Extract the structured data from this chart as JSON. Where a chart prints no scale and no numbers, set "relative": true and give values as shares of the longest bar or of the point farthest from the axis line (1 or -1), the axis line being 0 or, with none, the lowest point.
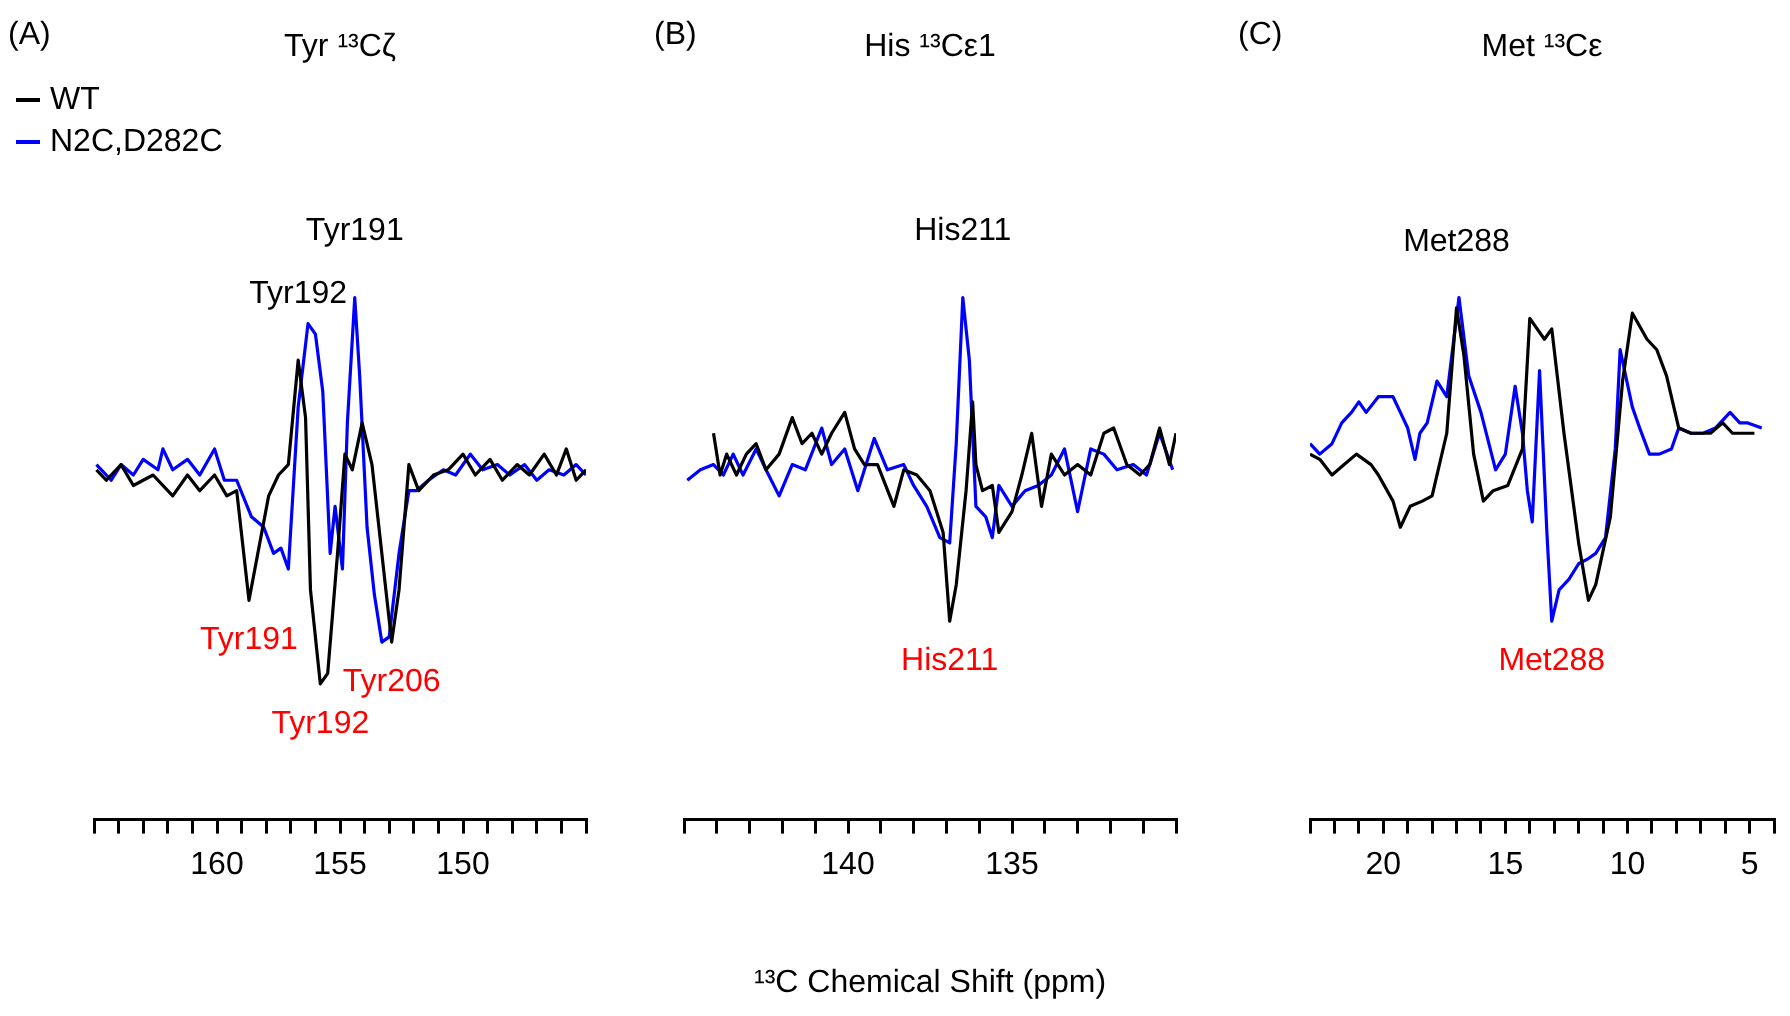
{
  "chart_data": [
    {
      "type": "line",
      "title": "Tyr ¹³Cζ",
      "relative": true,
      "marker": "none",
      "legend": "top left",
      "tick_labels": "x",
      "xlim": [
        165,
        145
      ],
      "xticks": [
        {
          "value": 165,
          "label": null
        },
        {
          "value": 164,
          "label": null
        },
        {
          "value": 163,
          "label": null
        },
        {
          "value": 162,
          "label": null
        },
        {
          "value": 161,
          "label": null
        },
        160,
        {
          "value": 159,
          "label": null
        },
        {
          "value": 158,
          "label": null
        },
        {
          "value": 157,
          "label": null
        },
        {
          "value": 156,
          "label": null
        },
        155,
        {
          "value": 154,
          "label": null
        },
        {
          "value": 153,
          "label": null
        },
        {
          "value": 152,
          "label": null
        },
        {
          "value": 151,
          "label": null
        },
        150,
        {
          "value": 149,
          "label": null
        },
        {
          "value": 148,
          "label": null
        },
        {
          "value": 147,
          "label": null
        },
        {
          "value": 146,
          "label": null
        },
        {
          "value": 145,
          "label": null
        }
      ],
      "annotations": [
        "(A)",
        {
          "text": "Tyr192",
          "x": 156.7,
          "y": 0.88
        },
        {
          "text": "Tyr191",
          "x": 154.4,
          "y": 1
        },
        {
          "text": "Tyr191",
          "x": 158.7,
          "y": 0.42
        },
        {
          "text": "Tyr192",
          "x": 155.8,
          "y": 0.26
        },
        {
          "text": "Tyr206",
          "x": 152.9,
          "y": 0.34
        }
      ],
      "series": [
        {
          "name": "WT",
          "color": "#000000",
          "x": [
            164.9,
            164.5,
            163.9,
            163.4,
            162.6,
            161.8,
            161.2,
            160.7,
            160.1,
            159.6,
            159.2,
            158.7,
            158.3,
            157.9,
            157.5,
            157.1,
            156.7,
            156.4,
            156.2,
            155.8,
            155.5,
            155.1,
            154.8,
            154.5,
            154.1,
            153.7,
            153.3,
            152.9,
            152.6,
            152.2,
            151.8,
            151.2,
            150.6,
            150.0,
            149.5,
            148.9,
            148.4,
            147.8,
            147.3,
            146.7,
            146.2,
            145.8,
            145.4,
            145.0
          ],
          "values": [
            0.67,
            0.65,
            0.68,
            0.64,
            0.66,
            0.62,
            0.66,
            0.63,
            0.66,
            0.62,
            0.63,
            0.42,
            0.52,
            0.62,
            0.66,
            0.68,
            0.88,
            0.77,
            0.44,
            0.26,
            0.28,
            0.51,
            0.7,
            0.67,
            0.76,
            0.68,
            0.51,
            0.34,
            0.44,
            0.68,
            0.63,
            0.66,
            0.67,
            0.7,
            0.66,
            0.69,
            0.65,
            0.68,
            0.66,
            0.7,
            0.66,
            0.71,
            0.65,
            0.67
          ]
        },
        {
          "name": "N2C,D282C",
          "color": "#0000ff",
          "x": [
            164.9,
            164.3,
            163.9,
            163.4,
            163.0,
            162.4,
            162.2,
            161.8,
            161.2,
            160.7,
            160.1,
            159.7,
            159.2,
            158.6,
            158.1,
            157.7,
            157.4,
            157.1,
            156.7,
            156.3,
            156.0,
            155.7,
            155.4,
            155.2,
            154.9,
            154.7,
            154.4,
            154.2,
            153.9,
            153.6,
            153.3,
            153.0,
            152.6,
            152.2,
            151.9,
            151.4,
            150.8,
            150.3,
            149.7,
            149.2,
            148.6,
            148.1,
            147.5,
            147.0,
            146.5,
            145.9,
            145.4,
            145.0
          ],
          "values": [
            0.68,
            0.65,
            0.68,
            0.66,
            0.69,
            0.67,
            0.71,
            0.67,
            0.69,
            0.66,
            0.71,
            0.65,
            0.65,
            0.58,
            0.56,
            0.51,
            0.52,
            0.48,
            0.79,
            0.95,
            0.93,
            0.82,
            0.51,
            0.6,
            0.48,
            0.76,
            1,
            0.85,
            0.56,
            0.43,
            0.34,
            0.35,
            0.51,
            0.63,
            0.63,
            0.65,
            0.67,
            0.66,
            0.7,
            0.67,
            0.68,
            0.66,
            0.68,
            0.65,
            0.67,
            0.66,
            0.68,
            0.66
          ]
        }
      ]
    },
    {
      "type": "line",
      "title": "His ¹³Cε1",
      "relative": true,
      "marker": "none",
      "tick_labels": "x",
      "xlabel": "¹³C Chemical Shift (ppm)",
      "xlim": [
        145,
        130
      ],
      "xticks": [
        {
          "value": 145,
          "label": null
        },
        {
          "value": 144,
          "label": null
        },
        {
          "value": 143,
          "label": null
        },
        {
          "value": 142,
          "label": null
        },
        {
          "value": 141,
          "label": null
        },
        140,
        {
          "value": 139,
          "label": null
        },
        {
          "value": 138,
          "label": null
        },
        {
          "value": 137,
          "label": null
        },
        {
          "value": 136,
          "label": null
        },
        135,
        {
          "value": 134,
          "label": null
        },
        {
          "value": 133,
          "label": null
        },
        {
          "value": 132,
          "label": null
        },
        {
          "value": 131,
          "label": null
        },
        {
          "value": 130,
          "label": null
        }
      ],
      "annotations": [
        "(B)",
        {
          "text": "His211",
          "x": 136.5,
          "y": 1
        },
        {
          "text": "His211",
          "x": 136.9,
          "y": 0.38
        }
      ],
      "series": [
        {
          "color": "#000000",
          "x": [
            144.1,
            143.9,
            143.7,
            143.4,
            143.1,
            142.8,
            142.5,
            142.1,
            141.7,
            141.4,
            141.1,
            140.8,
            140.5,
            140.1,
            139.8,
            139.5,
            139.1,
            138.6,
            138.3,
            137.9,
            137.5,
            137.1,
            136.9,
            136.7,
            136.4,
            136.2,
            136.1,
            135.9,
            135.6,
            135.4,
            135.0,
            134.7,
            134.4,
            134.1,
            133.8,
            133.4,
            133.0,
            132.6,
            132.2,
            131.9,
            131.5,
            131.1,
            130.8,
            130.5,
            130.2,
            130.0
          ],
          "values": [
            0.74,
            0.66,
            0.7,
            0.66,
            0.7,
            0.72,
            0.67,
            0.7,
            0.77,
            0.72,
            0.74,
            0.7,
            0.74,
            0.78,
            0.71,
            0.68,
            0.68,
            0.6,
            0.67,
            0.66,
            0.63,
            0.55,
            0.38,
            0.45,
            0.63,
            0.8,
            0.68,
            0.63,
            0.64,
            0.55,
            0.59,
            0.66,
            0.74,
            0.6,
            0.7,
            0.66,
            0.68,
            0.66,
            0.74,
            0.75,
            0.68,
            0.66,
            0.68,
            0.75,
            0.68,
            0.74
          ]
        },
        {
          "color": "#0000ff",
          "x": [
            144.9,
            144.5,
            144.1,
            143.8,
            143.5,
            143.2,
            142.8,
            142.5,
            142.1,
            141.7,
            141.3,
            140.8,
            140.5,
            140.1,
            139.7,
            139.2,
            138.8,
            138.3,
            138.0,
            137.6,
            137.2,
            136.9,
            136.7,
            136.5,
            136.3,
            136.1,
            135.8,
            135.6,
            135.4,
            135.0,
            134.6,
            134.2,
            133.8,
            133.4,
            133.0,
            132.6,
            132.2,
            131.8,
            131.3,
            130.9,
            130.5,
            130.1
          ],
          "values": [
            0.65,
            0.67,
            0.68,
            0.66,
            0.7,
            0.66,
            0.71,
            0.67,
            0.62,
            0.68,
            0.67,
            0.75,
            0.68,
            0.71,
            0.63,
            0.73,
            0.67,
            0.68,
            0.64,
            0.6,
            0.54,
            0.53,
            0.72,
            1,
            0.88,
            0.6,
            0.58,
            0.54,
            0.64,
            0.6,
            0.63,
            0.64,
            0.66,
            0.71,
            0.59,
            0.71,
            0.7,
            0.67,
            0.68,
            0.66,
            0.74,
            0.67
          ]
        }
      ]
    },
    {
      "type": "line",
      "title": "Met ¹³Cε",
      "relative": true,
      "marker": "none",
      "tick_labels": "x",
      "xlim": [
        23,
        4
      ],
      "xticks": [
        {
          "value": 23,
          "label": null
        },
        {
          "value": 22,
          "label": null
        },
        {
          "value": 21,
          "label": null
        },
        20,
        {
          "value": 19,
          "label": null
        },
        {
          "value": 18,
          "label": null
        },
        {
          "value": 17,
          "label": null
        },
        {
          "value": 16,
          "label": null
        },
        15,
        {
          "value": 14,
          "label": null
        },
        {
          "value": 13,
          "label": null
        },
        {
          "value": 12,
          "label": null
        },
        {
          "value": 11,
          "label": null
        },
        10,
        {
          "value": 9,
          "label": null
        },
        {
          "value": 8,
          "label": null
        },
        {
          "value": 7,
          "label": null
        },
        {
          "value": 6,
          "label": null
        },
        5,
        {
          "value": 4,
          "label": null
        }
      ],
      "annotations": [
        "(C)",
        {
          "text": "Met288",
          "x": 17.0,
          "y": 0.98
        },
        {
          "text": "Met288",
          "x": 13.1,
          "y": 0.38
        }
      ],
      "series": [
        {
          "color": "#000000",
          "x": [
            23.0,
            22.6,
            22.1,
            21.6,
            21.1,
            20.5,
            20.2,
            19.6,
            19.3,
            18.9,
            18.4,
            18.0,
            17.4,
            17.0,
            16.7,
            16.3,
            15.9,
            15.5,
            14.9,
            14.3,
            14.0,
            13.4,
            13.1,
            12.6,
            12.0,
            11.6,
            11.3,
            10.7,
            10.2,
            9.8,
            9.2,
            8.8,
            8.4,
            7.9,
            7.4,
            6.6,
            6.1,
            5.7,
            5.3,
            4.8
          ],
          "values": [
            0.7,
            0.69,
            0.66,
            0.68,
            0.7,
            0.68,
            0.66,
            0.61,
            0.56,
            0.6,
            0.61,
            0.62,
            0.74,
            0.98,
            0.89,
            0.7,
            0.61,
            0.63,
            0.64,
            0.71,
            0.96,
            0.92,
            0.94,
            0.74,
            0.53,
            0.42,
            0.45,
            0.58,
            0.84,
            0.97,
            0.92,
            0.9,
            0.85,
            0.75,
            0.74,
            0.74,
            0.76,
            0.74,
            0.74,
            0.74
          ]
        },
        {
          "color": "#0000ff",
          "x": [
            23.0,
            22.6,
            22.1,
            21.7,
            21.3,
            21.0,
            20.7,
            20.2,
            19.6,
            19.3,
            19.0,
            18.7,
            18.5,
            18.2,
            17.8,
            17.4,
            16.9,
            16.5,
            16.0,
            15.4,
            15.0,
            14.6,
            14.3,
            14.1,
            13.9,
            13.6,
            13.3,
            13.1,
            12.8,
            12.4,
            12.0,
            11.6,
            11.3,
            10.9,
            10.5,
            10.3,
            9.8,
            9.5,
            9.1,
            8.7,
            8.2,
            7.9,
            7.4,
            6.9,
            6.4,
            5.8,
            5.4,
            5.1,
            4.5
          ],
          "values": [
            0.72,
            0.7,
            0.72,
            0.76,
            0.78,
            0.8,
            0.78,
            0.81,
            0.81,
            0.78,
            0.75,
            0.69,
            0.74,
            0.76,
            0.84,
            0.81,
            1,
            0.85,
            0.78,
            0.67,
            0.7,
            0.83,
            0.74,
            0.63,
            0.57,
            0.86,
            0.55,
            0.38,
            0.44,
            0.46,
            0.49,
            0.5,
            0.51,
            0.54,
            0.71,
            0.9,
            0.79,
            0.75,
            0.7,
            0.7,
            0.71,
            0.75,
            0.74,
            0.74,
            0.75,
            0.78,
            0.76,
            0.76,
            0.75
          ]
        }
      ]
    }
  ]
}
